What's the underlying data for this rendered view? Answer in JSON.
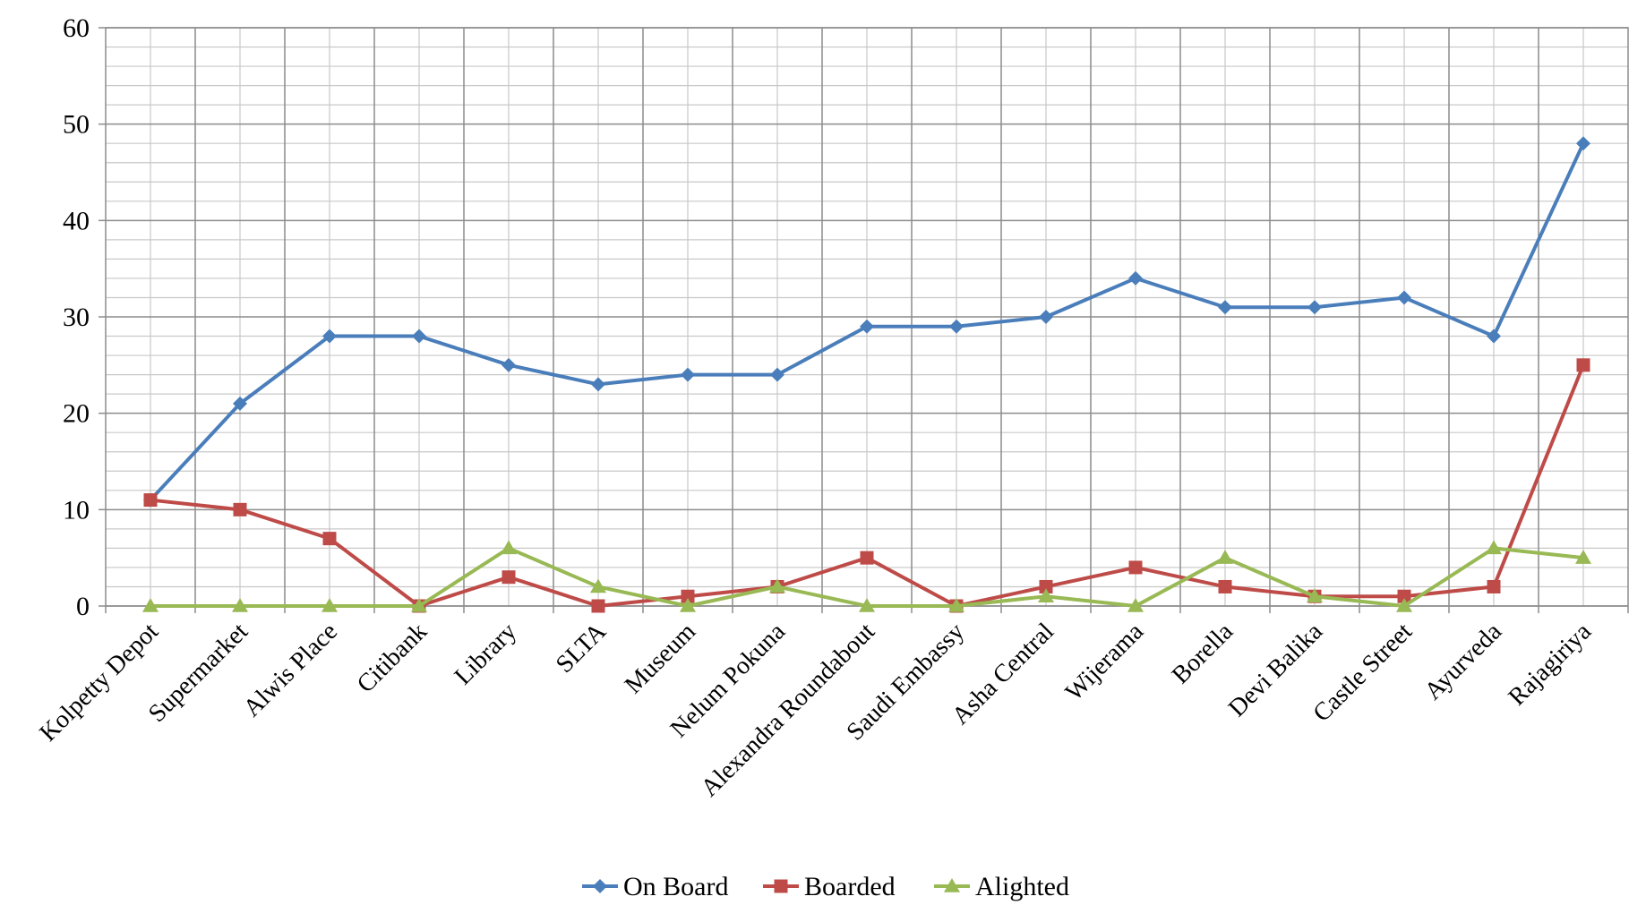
{
  "chart_data": {
    "type": "line",
    "title": "",
    "xlabel": "",
    "ylabel": "",
    "ylim": [
      0,
      60
    ],
    "yticks": [
      0,
      10,
      20,
      30,
      40,
      50,
      60
    ],
    "grid": true,
    "legend_position": "bottom",
    "categories": [
      "Kolpetty Depot",
      "Supermarket",
      "Alwis Place",
      "Citibank",
      "Library",
      "SLTA",
      "Museum",
      "Nelum Pokuna",
      "Alexandra Roundabout",
      "Saudi Embassy",
      "Asha Central",
      "Wijerama",
      "Borella",
      "Devi Balika",
      "Castle Street",
      "Ayurveda",
      "Rajagiriya"
    ],
    "series": [
      {
        "name": "On Board",
        "color": "#4A7EBB",
        "marker": "diamond",
        "values": [
          11,
          21,
          28,
          28,
          25,
          23,
          24,
          24,
          29,
          29,
          30,
          34,
          31,
          31,
          32,
          28,
          48
        ]
      },
      {
        "name": "Boarded",
        "color": "#BE4B48",
        "marker": "square",
        "values": [
          11,
          10,
          7,
          0,
          3,
          0,
          1,
          2,
          5,
          0,
          2,
          4,
          2,
          1,
          1,
          2,
          25
        ]
      },
      {
        "name": "Alighted",
        "color": "#98B954",
        "marker": "triangle",
        "values": [
          0,
          0,
          0,
          0,
          6,
          2,
          0,
          2,
          0,
          0,
          1,
          0,
          5,
          1,
          0,
          6,
          5
        ]
      }
    ]
  }
}
